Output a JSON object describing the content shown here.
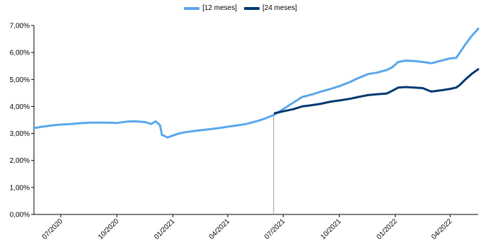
{
  "chart_data": {
    "type": "line",
    "ylim": [
      0,
      7
    ],
    "y_ticks": [
      "0,00%",
      "1,00%",
      "2,00%",
      "3,00%",
      "4,00%",
      "5,00%",
      "6,00%",
      "7,00%"
    ],
    "x_ticks": [
      "07/2020",
      "10/2020",
      "01/2021",
      "04/2021",
      "07/2021",
      "10/2021",
      "01/2022",
      "04/2022"
    ],
    "x_domain": [
      "2020-06-01",
      "2022-05-31"
    ],
    "grid": false,
    "legend_position": "top-center",
    "series": [
      {
        "name": "[12 meses]",
        "color": "#5aa7ec",
        "points": [
          [
            "2020-06-01",
            3.2
          ],
          [
            "2020-06-15",
            3.25
          ],
          [
            "2020-07-01",
            3.3
          ],
          [
            "2020-07-15",
            3.33
          ],
          [
            "2020-08-01",
            3.35
          ],
          [
            "2020-08-15",
            3.38
          ],
          [
            "2020-09-01",
            3.4
          ],
          [
            "2020-09-15",
            3.4
          ],
          [
            "2020-10-01",
            3.4
          ],
          [
            "2020-10-15",
            3.39
          ],
          [
            "2020-11-01",
            3.44
          ],
          [
            "2020-11-15",
            3.45
          ],
          [
            "2020-12-01",
            3.42
          ],
          [
            "2020-12-10",
            3.35
          ],
          [
            "2020-12-18",
            3.45
          ],
          [
            "2020-12-25",
            3.3
          ],
          [
            "2020-12-28",
            2.95
          ],
          [
            "2021-01-02",
            2.9
          ],
          [
            "2021-01-06",
            2.85
          ],
          [
            "2021-01-15",
            2.92
          ],
          [
            "2021-01-25",
            3.0
          ],
          [
            "2021-02-05",
            3.05
          ],
          [
            "2021-02-15",
            3.08
          ],
          [
            "2021-03-01",
            3.12
          ],
          [
            "2021-03-15",
            3.15
          ],
          [
            "2021-04-01",
            3.2
          ],
          [
            "2021-04-15",
            3.25
          ],
          [
            "2021-05-01",
            3.3
          ],
          [
            "2021-05-15",
            3.35
          ],
          [
            "2021-06-01",
            3.45
          ],
          [
            "2021-06-15",
            3.55
          ],
          [
            "2021-07-01",
            3.7
          ],
          [
            "2021-07-15",
            3.9
          ],
          [
            "2021-08-01",
            4.15
          ],
          [
            "2021-08-15",
            4.35
          ],
          [
            "2021-09-01",
            4.45
          ],
          [
            "2021-09-15",
            4.55
          ],
          [
            "2021-10-01",
            4.65
          ],
          [
            "2021-10-15",
            4.75
          ],
          [
            "2021-11-01",
            4.9
          ],
          [
            "2021-11-15",
            5.05
          ],
          [
            "2021-12-01",
            5.2
          ],
          [
            "2021-12-15",
            5.25
          ],
          [
            "2022-01-01",
            5.35
          ],
          [
            "2022-01-10",
            5.45
          ],
          [
            "2022-01-20",
            5.65
          ],
          [
            "2022-02-01",
            5.7
          ],
          [
            "2022-02-15",
            5.68
          ],
          [
            "2022-03-01",
            5.65
          ],
          [
            "2022-03-15",
            5.6
          ],
          [
            "2022-04-01",
            5.7
          ],
          [
            "2022-04-15",
            5.78
          ],
          [
            "2022-04-25",
            5.8
          ],
          [
            "2022-05-01",
            6.0
          ],
          [
            "2022-05-10",
            6.3
          ],
          [
            "2022-05-20",
            6.6
          ],
          [
            "2022-05-31",
            6.88
          ]
        ]
      },
      {
        "name": "[24 meses]",
        "color": "#00376f",
        "points": [
          [
            "2021-07-01",
            3.75
          ],
          [
            "2021-07-15",
            3.82
          ],
          [
            "2021-08-01",
            3.9
          ],
          [
            "2021-08-15",
            4.0
          ],
          [
            "2021-09-01",
            4.05
          ],
          [
            "2021-09-15",
            4.1
          ],
          [
            "2021-10-01",
            4.18
          ],
          [
            "2021-10-15",
            4.22
          ],
          [
            "2021-11-01",
            4.28
          ],
          [
            "2021-11-15",
            4.35
          ],
          [
            "2021-12-01",
            4.42
          ],
          [
            "2021-12-15",
            4.45
          ],
          [
            "2022-01-01",
            4.48
          ],
          [
            "2022-01-10",
            4.58
          ],
          [
            "2022-01-20",
            4.7
          ],
          [
            "2022-02-01",
            4.72
          ],
          [
            "2022-02-15",
            4.7
          ],
          [
            "2022-03-01",
            4.68
          ],
          [
            "2022-03-15",
            4.55
          ],
          [
            "2022-04-01",
            4.6
          ],
          [
            "2022-04-15",
            4.65
          ],
          [
            "2022-04-25",
            4.7
          ],
          [
            "2022-05-01",
            4.8
          ],
          [
            "2022-05-10",
            5.0
          ],
          [
            "2022-05-20",
            5.2
          ],
          [
            "2022-05-31",
            5.38
          ]
        ]
      }
    ]
  }
}
